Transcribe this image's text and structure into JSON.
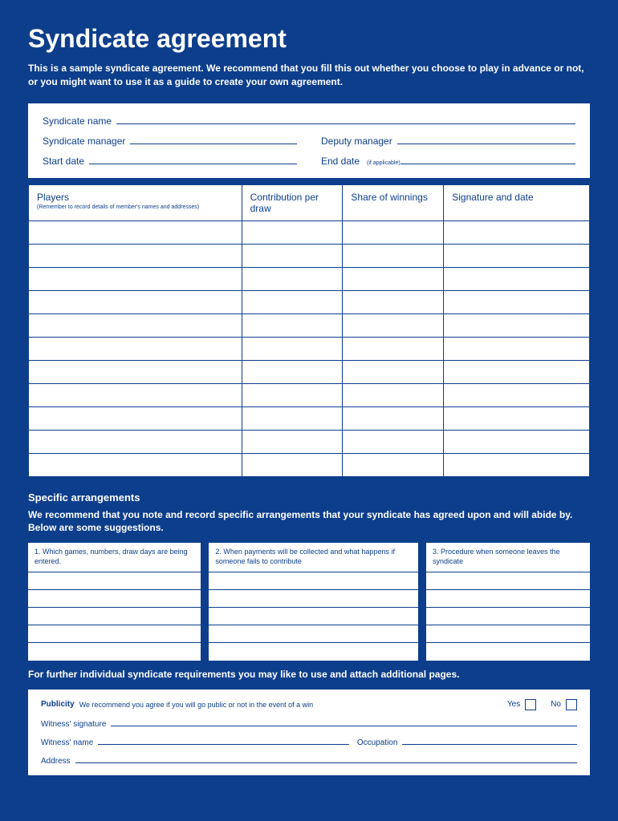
{
  "title": "Syndicate agreement",
  "intro": "This is a sample syndicate agreement. We recommend that you fill this out whether you choose to play in advance or not, or you might want to use it as a guide to create your own agreement.",
  "info": {
    "syndicate_name": "Syndicate name",
    "syndicate_manager": "Syndicate manager",
    "deputy_manager": "Deputy manager",
    "start_date": "Start date",
    "end_date": "End date",
    "end_date_sub": "(if applicable)"
  },
  "players_table": {
    "col1": "Players",
    "col1_sub": "(Remember to record details of member's names and addresses)",
    "col2": "Contribution per draw",
    "col3": "Share of winnings",
    "col4": "Signature and date",
    "rows": 11
  },
  "arrangements": {
    "title": "Specific arrangements",
    "text": "We recommend that you note and record specific arrangements that your syndicate has agreed upon and will abide by. Below are some suggestions.",
    "box1": "1. Which games, numbers, draw days are being entered.",
    "box2": "2. When payments will be collected and what happens if someone fails to contribute",
    "box3": "3. Procedure when someone leaves the syndicate",
    "rows": 5
  },
  "further": "For further individual syndicate requirements you may like to use and attach additional pages.",
  "publicity": {
    "label": "Publicity",
    "text": "We recommend you agree if you will go public or not in the event of a win",
    "yes": "Yes",
    "no": "No",
    "witness_sig": "Witness' signature",
    "witness_name": "Witness' name",
    "occupation": "Occupation",
    "address": "Address"
  }
}
